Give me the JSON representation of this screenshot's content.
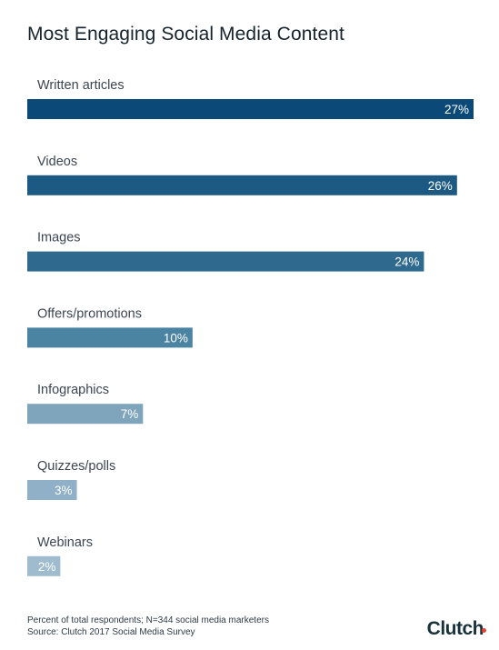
{
  "chart_data": {
    "type": "bar",
    "orientation": "horizontal",
    "title": "Most Engaging Social Media Content",
    "categories": [
      "Written articles",
      "Videos",
      "Images",
      "Offers/promotions",
      "Infographics",
      "Quizzes/polls",
      "Webinars"
    ],
    "values": [
      27,
      26,
      24,
      10,
      7,
      3,
      2
    ],
    "value_labels": [
      "27%",
      "26%",
      "24%",
      "10%",
      "7%",
      "3%",
      "2%"
    ],
    "unit": "%",
    "bar_colors": [
      "#0b4a78",
      "#1d5a83",
      "#2f6a8e",
      "#4b83a2",
      "#7fa5bd",
      "#8fb0c6",
      "#9fbccf"
    ],
    "grid": false
  },
  "footnote": {
    "line1": "Percent of total respondents; N=344 social media marketers",
    "line2": "Source: Clutch 2017 Social Media Survey"
  },
  "logo": {
    "text": "Clutch",
    "dot_color": "#e8432e"
  }
}
